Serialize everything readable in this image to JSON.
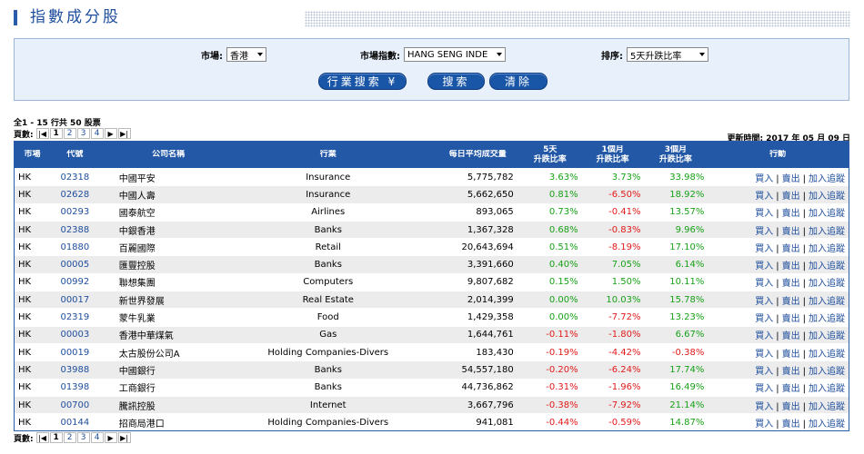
{
  "page": {
    "title": "指數成分股"
  },
  "search": {
    "market_label": "市場:",
    "market_value": "香港",
    "index_label": "市場指數:",
    "index_value": "HANG SENG INDE",
    "sort_label": "排序:",
    "sort_value": "5天升跌比率",
    "industry_button": "行業搜索 ¥",
    "search_button": "搜索",
    "clear_button": "清除"
  },
  "summary": "全1 - 15 行共 50 股票",
  "pager": {
    "label": "頁數:",
    "first": "|◀",
    "pages": [
      "1",
      "2",
      "3",
      "4"
    ],
    "next": "▶",
    "last": "▶|"
  },
  "updated": "更新時間: 2017 年 05 月 09 日",
  "table": {
    "headers": {
      "market": "市場",
      "code": "代號",
      "name": "公司名稱",
      "industry": "行業",
      "volume": "每日平均成交量",
      "w5_top": "5天",
      "w5_bottom": "升跌比率",
      "m1_top": "1個月",
      "m1_bottom": "升跌比率",
      "m3_top": "3個月",
      "m3_bottom": "升跌比率",
      "action": "行動"
    },
    "rows": [
      {
        "market": "HK",
        "code": "02318",
        "name": "中國平安",
        "industry": "Insurance",
        "volume": "5,775,782",
        "w5": "3.63%",
        "m1": "3.73%",
        "m3": "33.98%",
        "buy": "買入",
        "sell": "賣出",
        "watch": "加入追蹤"
      },
      {
        "market": "HK",
        "code": "02628",
        "name": "中國人壽",
        "industry": "Insurance",
        "volume": "5,662,650",
        "w5": "0.81%",
        "m1": "-6.50%",
        "m3": "18.92%",
        "buy": "買入",
        "sell": "賣出",
        "watch": "加入追蹤"
      },
      {
        "market": "HK",
        "code": "00293",
        "name": "國泰航空",
        "industry": "Airlines",
        "volume": "893,065",
        "w5": "0.73%",
        "m1": "-0.41%",
        "m3": "13.57%",
        "buy": "買入",
        "sell": "賣出",
        "watch": "加入追蹤"
      },
      {
        "market": "HK",
        "code": "02388",
        "name": "中銀香港",
        "industry": "Banks",
        "volume": "1,367,328",
        "w5": "0.68%",
        "m1": "-0.83%",
        "m3": "9.96%",
        "buy": "買入",
        "sell": "賣出",
        "watch": "加入追蹤"
      },
      {
        "market": "HK",
        "code": "01880",
        "name": "百麗國際",
        "industry": "Retail",
        "volume": "20,643,694",
        "w5": "0.51%",
        "m1": "-8.19%",
        "m3": "17.10%",
        "buy": "買入",
        "sell": "賣出",
        "watch": "加入追蹤"
      },
      {
        "market": "HK",
        "code": "00005",
        "name": "匯豐控股",
        "industry": "Banks",
        "volume": "3,391,660",
        "w5": "0.40%",
        "m1": "7.05%",
        "m3": "6.14%",
        "buy": "買入",
        "sell": "賣出",
        "watch": "加入追蹤"
      },
      {
        "market": "HK",
        "code": "00992",
        "name": "聯想集團",
        "industry": "Computers",
        "volume": "9,807,682",
        "w5": "0.15%",
        "m1": "1.50%",
        "m3": "10.11%",
        "buy": "買入",
        "sell": "賣出",
        "watch": "加入追蹤"
      },
      {
        "market": "HK",
        "code": "00017",
        "name": "新世界發展",
        "industry": "Real Estate",
        "volume": "2,014,399",
        "w5": "0.00%",
        "m1": "10.03%",
        "m3": "15.78%",
        "buy": "買入",
        "sell": "賣出",
        "watch": "加入追蹤"
      },
      {
        "market": "HK",
        "code": "02319",
        "name": "蒙牛乳業",
        "industry": "Food",
        "volume": "1,429,358",
        "w5": "0.00%",
        "m1": "-7.72%",
        "m3": "13.23%",
        "buy": "買入",
        "sell": "賣出",
        "watch": "加入追蹤"
      },
      {
        "market": "HK",
        "code": "00003",
        "name": "香港中華煤氣",
        "industry": "Gas",
        "volume": "1,644,761",
        "w5": "-0.11%",
        "m1": "-1.80%",
        "m3": "6.67%",
        "buy": "買入",
        "sell": "賣出",
        "watch": "加入追蹤"
      },
      {
        "market": "HK",
        "code": "00019",
        "name": "太古股份公司A",
        "industry": "Holding Companies-Divers",
        "volume": "183,430",
        "w5": "-0.19%",
        "m1": "-4.42%",
        "m3": "-0.38%",
        "buy": "買入",
        "sell": "賣出",
        "watch": "加入追蹤"
      },
      {
        "market": "HK",
        "code": "03988",
        "name": "中國銀行",
        "industry": "Banks",
        "volume": "54,557,180",
        "w5": "-0.20%",
        "m1": "-6.24%",
        "m3": "17.74%",
        "buy": "買入",
        "sell": "賣出",
        "watch": "加入追蹤"
      },
      {
        "market": "HK",
        "code": "01398",
        "name": "工商銀行",
        "industry": "Banks",
        "volume": "44,736,862",
        "w5": "-0.31%",
        "m1": "-1.96%",
        "m3": "16.49%",
        "buy": "買入",
        "sell": "賣出",
        "watch": "加入追蹤"
      },
      {
        "market": "HK",
        "code": "00700",
        "name": "騰訊控股",
        "industry": "Internet",
        "volume": "3,667,796",
        "w5": "-0.38%",
        "m1": "-7.92%",
        "m3": "21.14%",
        "buy": "買入",
        "sell": "賣出",
        "watch": "加入追蹤"
      },
      {
        "market": "HK",
        "code": "00144",
        "name": "招商局港口",
        "industry": "Holding Companies-Divers",
        "volume": "941,081",
        "w5": "-0.44%",
        "m1": "-0.59%",
        "m3": "14.87%",
        "buy": "買入",
        "sell": "賣出",
        "watch": "加入追蹤"
      }
    ]
  }
}
